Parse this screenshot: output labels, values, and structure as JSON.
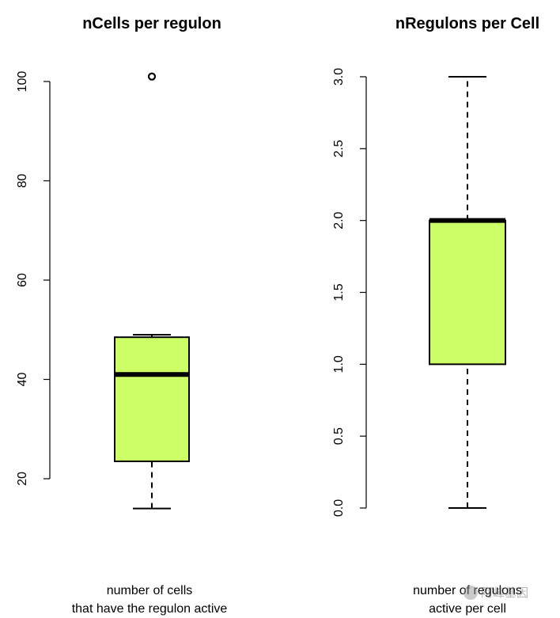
{
  "chart_data": [
    {
      "type": "boxplot",
      "title": "nCells per regulon",
      "xlabel": "number of cells\nthat have the regulon active",
      "ylabel": "",
      "ylim": [
        10,
        102
      ],
      "y_ticks": [
        20,
        40,
        60,
        80,
        100
      ],
      "y_tick_labels": [
        "20",
        "40",
        "60",
        "80",
        "100"
      ],
      "box": {
        "min": 14,
        "q1": 23.5,
        "median": 41,
        "q3": 48.5,
        "max": 49
      },
      "outliers": [
        101
      ],
      "box_color": "#ccff66",
      "grid": false
    },
    {
      "type": "boxplot",
      "title": "nRegulons per Cell",
      "xlabel": "number of regulons\nactive per cell",
      "ylabel": "",
      "ylim": [
        0,
        3
      ],
      "y_ticks": [
        0,
        0.5,
        1,
        1.5,
        2,
        2.5,
        3
      ],
      "y_tick_labels": [
        "0.0",
        "0.5",
        "1.0",
        "1.5",
        "2.0",
        "2.5",
        "3.0"
      ],
      "box": {
        "min": 0,
        "q1": 1,
        "median": 2,
        "q3": 2,
        "max": 3
      },
      "outliers": [],
      "box_color": "#ccff66",
      "grid": false
    }
  ],
  "watermark": {
    "text": "阿峰基因",
    "icon": "wechat-icon"
  }
}
